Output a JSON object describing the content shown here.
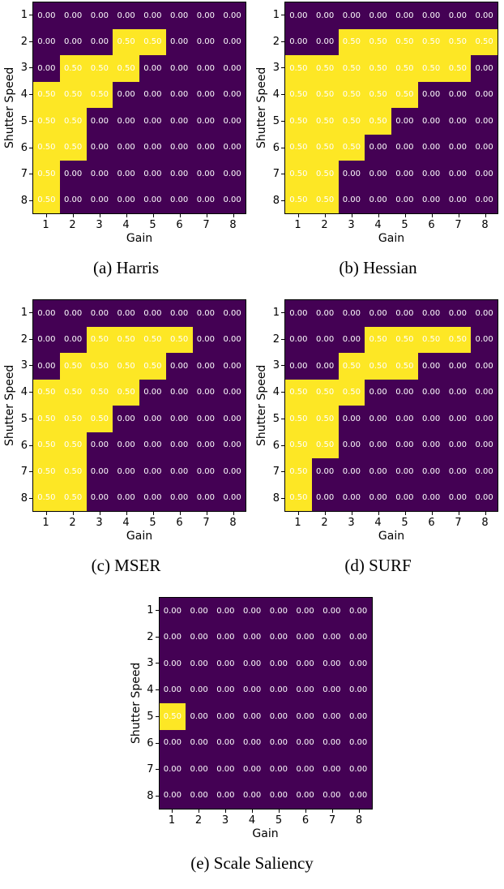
{
  "figure": {
    "background": "#ffffff"
  },
  "colors": {
    "low": "#440154",
    "high": "#FDE725",
    "cell_text": "#ffffff",
    "axis_text": "#000000"
  },
  "chart_data": [
    {
      "type": "heatmap",
      "caption": "(a) Harris",
      "xlabel": "Gain",
      "ylabel": "Shutter Speed",
      "x_ticks": [
        "1",
        "2",
        "3",
        "4",
        "5",
        "6",
        "7",
        "8"
      ],
      "y_ticks": [
        "1",
        "2",
        "3",
        "4",
        "5",
        "6",
        "7",
        "8"
      ],
      "vmin": 0,
      "vmax": 0.5,
      "grid": false,
      "legend": false,
      "values": [
        [
          0.0,
          0.0,
          0.0,
          0.0,
          0.0,
          0.0,
          0.0,
          0.0
        ],
        [
          0.0,
          0.0,
          0.0,
          0.5,
          0.5,
          0.0,
          0.0,
          0.0
        ],
        [
          0.0,
          0.5,
          0.5,
          0.5,
          0.0,
          0.0,
          0.0,
          0.0
        ],
        [
          0.5,
          0.5,
          0.5,
          0.0,
          0.0,
          0.0,
          0.0,
          0.0
        ],
        [
          0.5,
          0.5,
          0.0,
          0.0,
          0.0,
          0.0,
          0.0,
          0.0
        ],
        [
          0.5,
          0.5,
          0.0,
          0.0,
          0.0,
          0.0,
          0.0,
          0.0
        ],
        [
          0.5,
          0.0,
          0.0,
          0.0,
          0.0,
          0.0,
          0.0,
          0.0
        ],
        [
          0.5,
          0.0,
          0.0,
          0.0,
          0.0,
          0.0,
          0.0,
          0.0
        ]
      ]
    },
    {
      "type": "heatmap",
      "caption": "(b) Hessian",
      "xlabel": "Gain",
      "ylabel": "Shutter Speed",
      "x_ticks": [
        "1",
        "2",
        "3",
        "4",
        "5",
        "6",
        "7",
        "8"
      ],
      "y_ticks": [
        "1",
        "2",
        "3",
        "4",
        "5",
        "6",
        "7",
        "8"
      ],
      "vmin": 0,
      "vmax": 0.5,
      "grid": false,
      "legend": false,
      "values": [
        [
          0.0,
          0.0,
          0.0,
          0.0,
          0.0,
          0.0,
          0.0,
          0.0
        ],
        [
          0.0,
          0.0,
          0.5,
          0.5,
          0.5,
          0.5,
          0.5,
          0.5
        ],
        [
          0.5,
          0.5,
          0.5,
          0.5,
          0.5,
          0.5,
          0.5,
          0.0
        ],
        [
          0.5,
          0.5,
          0.5,
          0.5,
          0.5,
          0.0,
          0.0,
          0.0
        ],
        [
          0.5,
          0.5,
          0.5,
          0.5,
          0.0,
          0.0,
          0.0,
          0.0
        ],
        [
          0.5,
          0.5,
          0.5,
          0.0,
          0.0,
          0.0,
          0.0,
          0.0
        ],
        [
          0.5,
          0.5,
          0.0,
          0.0,
          0.0,
          0.0,
          0.0,
          0.0
        ],
        [
          0.5,
          0.5,
          0.0,
          0.0,
          0.0,
          0.0,
          0.0,
          0.0
        ]
      ]
    },
    {
      "type": "heatmap",
      "caption": "(c) MSER",
      "xlabel": "Gain",
      "ylabel": "Shutter Speed",
      "x_ticks": [
        "1",
        "2",
        "3",
        "4",
        "5",
        "6",
        "7",
        "8"
      ],
      "y_ticks": [
        "1",
        "2",
        "3",
        "4",
        "5",
        "6",
        "7",
        "8"
      ],
      "vmin": 0,
      "vmax": 0.5,
      "grid": false,
      "legend": false,
      "values": [
        [
          0.0,
          0.0,
          0.0,
          0.0,
          0.0,
          0.0,
          0.0,
          0.0
        ],
        [
          0.0,
          0.0,
          0.5,
          0.5,
          0.5,
          0.5,
          0.0,
          0.0
        ],
        [
          0.0,
          0.5,
          0.5,
          0.5,
          0.5,
          0.0,
          0.0,
          0.0
        ],
        [
          0.5,
          0.5,
          0.5,
          0.5,
          0.0,
          0.0,
          0.0,
          0.0
        ],
        [
          0.5,
          0.5,
          0.5,
          0.0,
          0.0,
          0.0,
          0.0,
          0.0
        ],
        [
          0.5,
          0.5,
          0.0,
          0.0,
          0.0,
          0.0,
          0.0,
          0.0
        ],
        [
          0.5,
          0.5,
          0.0,
          0.0,
          0.0,
          0.0,
          0.0,
          0.0
        ],
        [
          0.5,
          0.5,
          0.0,
          0.0,
          0.0,
          0.0,
          0.0,
          0.0
        ]
      ]
    },
    {
      "type": "heatmap",
      "caption": "(d) SURF",
      "xlabel": "Gain",
      "ylabel": "Shutter Speed",
      "x_ticks": [
        "1",
        "2",
        "3",
        "4",
        "5",
        "6",
        "7",
        "8"
      ],
      "y_ticks": [
        "1",
        "2",
        "3",
        "4",
        "5",
        "6",
        "7",
        "8"
      ],
      "vmin": 0,
      "vmax": 0.5,
      "grid": false,
      "legend": false,
      "values": [
        [
          0.0,
          0.0,
          0.0,
          0.0,
          0.0,
          0.0,
          0.0,
          0.0
        ],
        [
          0.0,
          0.0,
          0.0,
          0.5,
          0.5,
          0.5,
          0.5,
          0.0
        ],
        [
          0.0,
          0.0,
          0.5,
          0.5,
          0.5,
          0.0,
          0.0,
          0.0
        ],
        [
          0.5,
          0.5,
          0.5,
          0.0,
          0.0,
          0.0,
          0.0,
          0.0
        ],
        [
          0.5,
          0.5,
          0.0,
          0.0,
          0.0,
          0.0,
          0.0,
          0.0
        ],
        [
          0.5,
          0.5,
          0.0,
          0.0,
          0.0,
          0.0,
          0.0,
          0.0
        ],
        [
          0.5,
          0.0,
          0.0,
          0.0,
          0.0,
          0.0,
          0.0,
          0.0
        ],
        [
          0.5,
          0.0,
          0.0,
          0.0,
          0.0,
          0.0,
          0.0,
          0.0
        ]
      ]
    },
    {
      "type": "heatmap",
      "caption": "(e) Scale Saliency",
      "xlabel": "Gain",
      "ylabel": "Shutter Speed",
      "x_ticks": [
        "1",
        "2",
        "3",
        "4",
        "5",
        "6",
        "7",
        "8"
      ],
      "y_ticks": [
        "1",
        "2",
        "3",
        "4",
        "5",
        "6",
        "7",
        "8"
      ],
      "vmin": 0,
      "vmax": 0.5,
      "grid": false,
      "legend": false,
      "values": [
        [
          0.0,
          0.0,
          0.0,
          0.0,
          0.0,
          0.0,
          0.0,
          0.0
        ],
        [
          0.0,
          0.0,
          0.0,
          0.0,
          0.0,
          0.0,
          0.0,
          0.0
        ],
        [
          0.0,
          0.0,
          0.0,
          0.0,
          0.0,
          0.0,
          0.0,
          0.0
        ],
        [
          0.0,
          0.0,
          0.0,
          0.0,
          0.0,
          0.0,
          0.0,
          0.0
        ],
        [
          0.5,
          0.0,
          0.0,
          0.0,
          0.0,
          0.0,
          0.0,
          0.0
        ],
        [
          0.0,
          0.0,
          0.0,
          0.0,
          0.0,
          0.0,
          0.0,
          0.0
        ],
        [
          0.0,
          0.0,
          0.0,
          0.0,
          0.0,
          0.0,
          0.0,
          0.0
        ],
        [
          0.0,
          0.0,
          0.0,
          0.0,
          0.0,
          0.0,
          0.0,
          0.0
        ]
      ]
    }
  ]
}
